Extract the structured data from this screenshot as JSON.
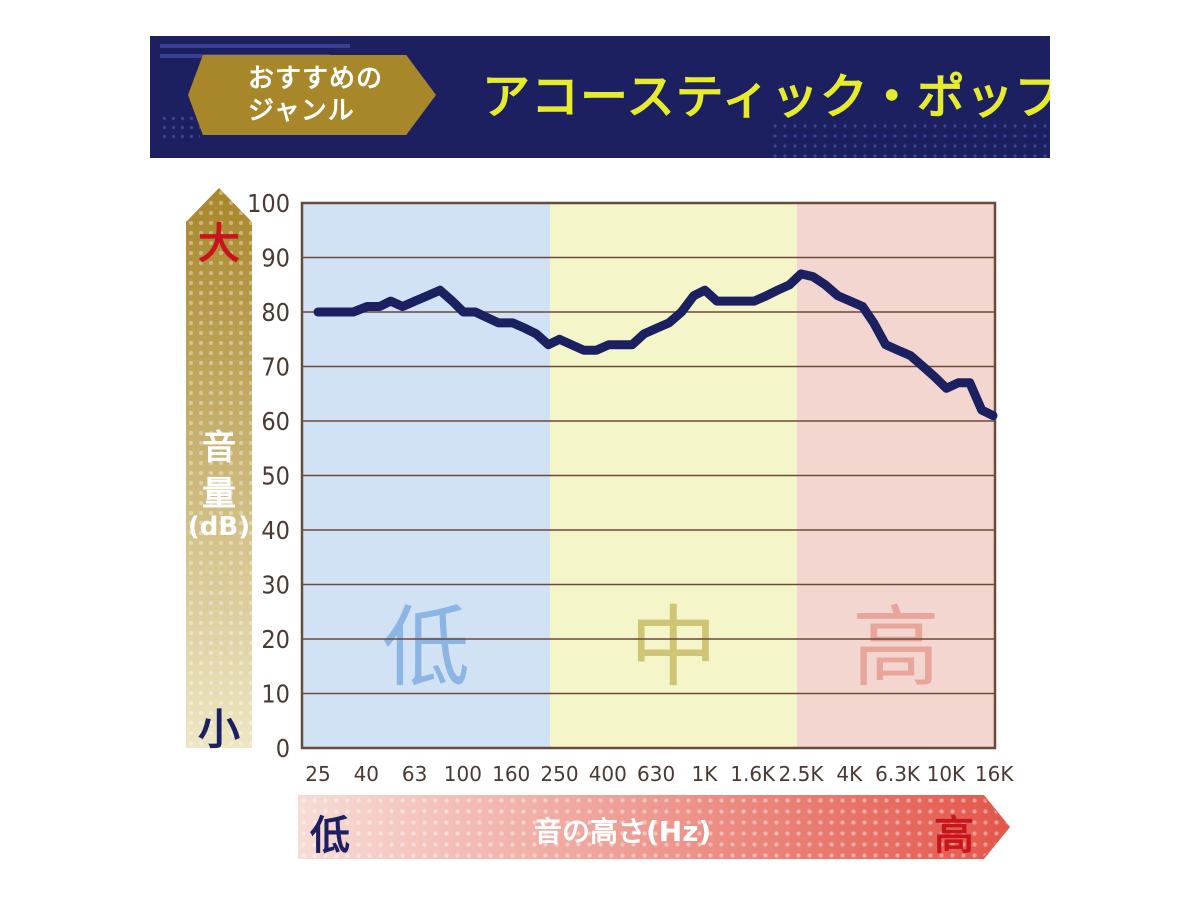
{
  "header": {
    "tag_line1": "おすすめの",
    "tag_line2": "ジャンル",
    "genre": "アコースティック・ポップス"
  },
  "y_axis": {
    "top_label": "大",
    "title_line1": "音",
    "title_line2": "量",
    "title_line3": "(dB)",
    "bottom_label": "小"
  },
  "x_axis": {
    "left_label": "低",
    "title": "音の高さ(Hz)",
    "right_label": "高"
  },
  "colors": {
    "banner": "#1c2060",
    "tag": "#a8862a",
    "genre_text": "#e6ec2a",
    "zone_low": "#d1e2f4",
    "zone_mid": "#f4f5c8",
    "zone_high": "#f4d6d0",
    "line": "#1b2060",
    "red_label": "#c8141c",
    "navy_label": "#1c2060"
  },
  "chart_data": {
    "type": "line",
    "title": "",
    "xlabel": "音の高さ(Hz)",
    "ylabel": "音量(dB)",
    "ylim": [
      0,
      100
    ],
    "yticks": [
      "0",
      "10",
      "20",
      "30",
      "40",
      "50",
      "60",
      "70",
      "80",
      "90",
      "100"
    ],
    "xtick_labels": [
      "25",
      "40",
      "63",
      "100",
      "160",
      "250",
      "400",
      "630",
      "1K",
      "1.6K",
      "2.5K",
      "4K",
      "6.3K",
      "10K",
      "16K"
    ],
    "zones": [
      {
        "name": "低",
        "from_tick": "25",
        "to_tick": "250"
      },
      {
        "name": "中",
        "from_tick": "250",
        "to_tick": "2.5K"
      },
      {
        "name": "高",
        "from_tick": "2.5K",
        "to_tick": "16K"
      }
    ],
    "grid": true,
    "series": [
      {
        "x": [
          25,
          28,
          31.5,
          35,
          40,
          45,
          50,
          56,
          63,
          71,
          80,
          90,
          100,
          112,
          125,
          140,
          160,
          180,
          200,
          225,
          250,
          280,
          315,
          355,
          400,
          450,
          500,
          560,
          630,
          710,
          800,
          900,
          1000,
          1120,
          1250,
          1400,
          1600,
          1800,
          2000,
          2240,
          2500,
          2800,
          3150,
          3550,
          4000,
          4500,
          5000,
          5600,
          6300,
          7100,
          8000,
          9000,
          10000,
          11200,
          12500,
          14000,
          16000
        ],
        "y": [
          80,
          80,
          80,
          80,
          81,
          81,
          82,
          81,
          82,
          83,
          84,
          82,
          80,
          80,
          79,
          78,
          78,
          77,
          76,
          74,
          75,
          74,
          73,
          73,
          74,
          74,
          74,
          76,
          77,
          78,
          80,
          83,
          84,
          82,
          82,
          82,
          82,
          83,
          84,
          85,
          87,
          86.5,
          85,
          83,
          82,
          81,
          78,
          74,
          73,
          72,
          70,
          68,
          66,
          67,
          67,
          62,
          61
        ]
      }
    ]
  }
}
